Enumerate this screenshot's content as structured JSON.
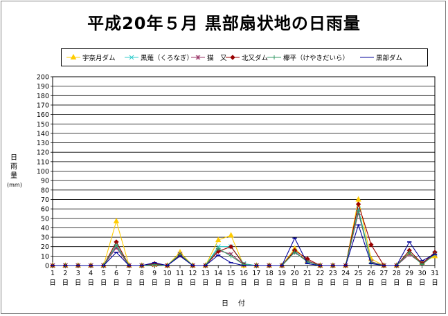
{
  "chart_data": {
    "type": "line",
    "title": "平成20年５月 黒部扇状地の日雨量",
    "ylabel": "日雨量",
    "yunit": "(mm)",
    "xlabel": "日付",
    "ylim": [
      0,
      200
    ],
    "ytick_step": 10,
    "grid": true,
    "legend_position": "top",
    "x": [
      "1",
      "2",
      "3",
      "4",
      "5",
      "6",
      "7",
      "8",
      "9",
      "10",
      "11",
      "12",
      "13",
      "14",
      "15",
      "16",
      "17",
      "18",
      "19",
      "20",
      "21",
      "22",
      "23",
      "24",
      "25",
      "26",
      "27",
      "28",
      "29",
      "30",
      "31"
    ],
    "x_suffix": "日",
    "series": [
      {
        "name": "宇奈月ダム",
        "marker": "triangle",
        "color": "#FFCC00",
        "values": [
          0,
          0,
          0,
          0,
          0,
          47,
          0,
          0,
          1,
          0,
          14,
          0,
          0,
          27,
          32,
          0,
          0,
          0,
          0,
          18,
          5,
          0,
          0,
          0,
          70,
          7,
          0,
          0,
          13,
          3,
          10
        ]
      },
      {
        "name": "黒薙（くろなぎ）",
        "marker": "x",
        "color": "#33CCCC",
        "values": [
          0,
          0,
          0,
          0,
          0,
          20,
          0,
          0,
          1,
          0,
          12,
          0,
          0,
          20,
          20,
          2,
          0,
          0,
          0,
          15,
          4,
          0,
          0,
          0,
          60,
          4,
          0,
          0,
          12,
          2,
          13
        ]
      },
      {
        "name": "猫　又",
        "marker": "asterisk",
        "color": "#993366",
        "values": [
          0,
          0,
          0,
          0,
          0,
          19,
          0,
          0,
          1,
          0,
          12,
          0,
          0,
          16,
          12,
          1,
          0,
          0,
          0,
          14,
          5,
          0,
          0,
          0,
          56,
          4,
          0,
          0,
          12,
          2,
          12
        ]
      },
      {
        "name": "北又ダム",
        "marker": "diamond",
        "color": "#990000",
        "values": [
          0,
          0,
          0,
          0,
          0,
          25,
          0,
          0,
          2,
          0,
          11,
          0,
          0,
          15,
          20,
          1,
          0,
          0,
          0,
          16,
          7,
          0,
          0,
          0,
          65,
          22,
          0,
          0,
          16,
          2,
          14
        ]
      },
      {
        "name": "欅平（けやきだいら）",
        "marker": "plus",
        "color": "#339966",
        "values": [
          0,
          0,
          0,
          0,
          0,
          22,
          0,
          0,
          1,
          0,
          12,
          0,
          0,
          18,
          10,
          1,
          0,
          0,
          0,
          14,
          4,
          0,
          0,
          0,
          58,
          3,
          0,
          0,
          14,
          1,
          12
        ]
      },
      {
        "name": "黒部ダム",
        "marker": "dash",
        "color": "#000099",
        "values": [
          0,
          0,
          0,
          0,
          0,
          14,
          0,
          0,
          3,
          0,
          10,
          0,
          0,
          11,
          3,
          0,
          0,
          0,
          0,
          29,
          2,
          0,
          0,
          0,
          43,
          2,
          0,
          0,
          25,
          5,
          12
        ]
      }
    ]
  }
}
